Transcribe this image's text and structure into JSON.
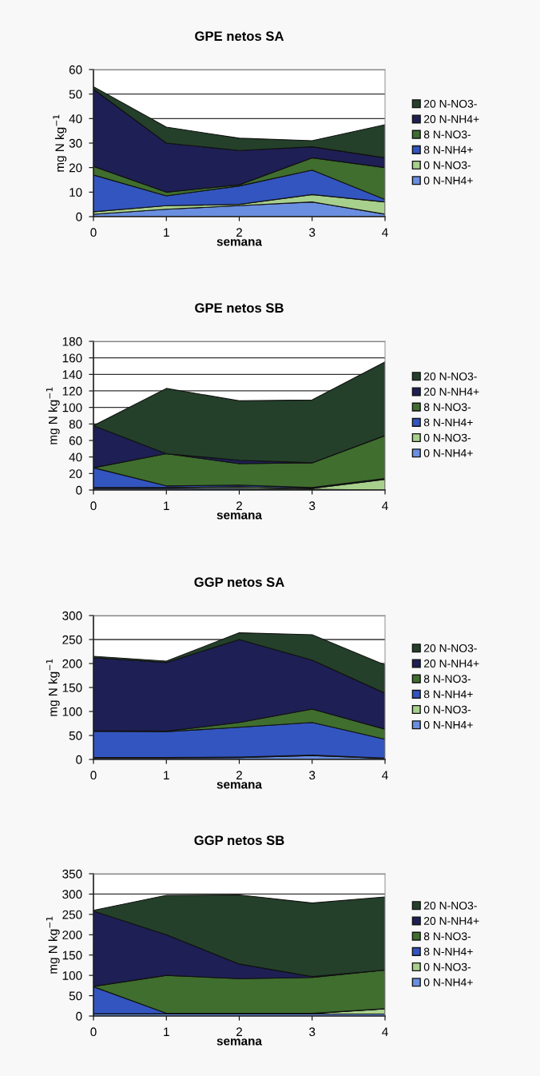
{
  "chart_data": [
    {
      "type": "area",
      "stacked": true,
      "title": "GPE netos SA",
      "xlabel": "semana",
      "ylabel": "mg N kg$^{−1}$",
      "x": [
        0,
        1,
        2,
        3,
        4
      ],
      "xlim": [
        0,
        4
      ],
      "xticks": [
        0,
        1,
        2,
        3,
        4
      ],
      "ylim": [
        0,
        60
      ],
      "yticks": [
        0,
        10,
        20,
        30,
        40,
        50,
        60
      ],
      "grid": "y",
      "legend": "right",
      "series": [
        {
          "name": "0 N-NH4+",
          "color": "#6a8fe0",
          "values": [
            1,
            3,
            4.5,
            6,
            1
          ]
        },
        {
          "name": "0 N-NO3-",
          "color": "#a8d08d",
          "values": [
            1,
            1.5,
            0.5,
            3,
            5
          ]
        },
        {
          "name": "8 N-NH4+",
          "color": "#3355c0",
          "values": [
            15,
            4,
            7.5,
            10,
            1
          ]
        },
        {
          "name": "8 N-NO3-",
          "color": "#3f6e2e",
          "values": [
            3.5,
            1.5,
            0.5,
            5,
            13
          ]
        },
        {
          "name": "20 N-NH4+",
          "color": "#1e1f55",
          "values": [
            31.5,
            20,
            14,
            4.5,
            4
          ]
        },
        {
          "name": "20 N-NO3-",
          "color": "#24402a",
          "values": [
            1,
            6.5,
            5,
            2.5,
            13.5
          ]
        }
      ]
    },
    {
      "type": "area",
      "stacked": true,
      "title": "GPE netos SB",
      "xlabel": "semana",
      "ylabel": "mg N kg$^{−1}$",
      "x": [
        0,
        1,
        2,
        3,
        4
      ],
      "xlim": [
        0,
        4
      ],
      "xticks": [
        0,
        1,
        2,
        3,
        4
      ],
      "ylim": [
        0,
        180
      ],
      "yticks": [
        0,
        20,
        40,
        60,
        80,
        100,
        120,
        140,
        160,
        180
      ],
      "grid": "y",
      "legend": "right",
      "series": [
        {
          "name": "0 N-NH4+",
          "color": "#6a8fe0",
          "values": [
            2,
            2,
            2,
            1,
            0
          ]
        },
        {
          "name": "0 N-NO3-",
          "color": "#a8d08d",
          "values": [
            1,
            1,
            2,
            1,
            13
          ]
        },
        {
          "name": "8 N-NH4+",
          "color": "#3355c0",
          "values": [
            24,
            2,
            2,
            1,
            1
          ]
        },
        {
          "name": "8 N-NO3-",
          "color": "#3f6e2e",
          "values": [
            0,
            39,
            26,
            30,
            52
          ]
        },
        {
          "name": "20 N-NH4+",
          "color": "#1e1f55",
          "values": [
            51,
            0,
            4,
            0,
            0
          ]
        },
        {
          "name": "20 N-NO3-",
          "color": "#24402a",
          "values": [
            0,
            79,
            72,
            76,
            89
          ]
        }
      ]
    },
    {
      "type": "area",
      "stacked": true,
      "title": "GGP netos SA",
      "xlabel": "semana",
      "ylabel": "mg N kg$^{−1}$",
      "x": [
        0,
        1,
        2,
        3,
        4
      ],
      "xlim": [
        0,
        4
      ],
      "xticks": [
        0,
        1,
        2,
        3,
        4
      ],
      "ylim": [
        0,
        300
      ],
      "yticks": [
        0,
        50,
        100,
        150,
        200,
        250,
        300
      ],
      "grid": "y",
      "legend": "right",
      "series": [
        {
          "name": "0 N-NH4+",
          "color": "#6a8fe0",
          "values": [
            3,
            3,
            4,
            8,
            2
          ]
        },
        {
          "name": "0 N-NO3-",
          "color": "#a8d08d",
          "values": [
            1,
            1,
            1,
            1,
            1
          ]
        },
        {
          "name": "8 N-NH4+",
          "color": "#3355c0",
          "values": [
            55,
            54,
            62,
            68,
            39
          ]
        },
        {
          "name": "8 N-NO3-",
          "color": "#3f6e2e",
          "values": [
            1,
            1,
            10,
            28,
            21
          ]
        },
        {
          "name": "20 N-NH4+",
          "color": "#1e1f55",
          "values": [
            152,
            143,
            173,
            102,
            75
          ]
        },
        {
          "name": "20 N-NO3-",
          "color": "#24402a",
          "values": [
            3,
            3,
            14,
            53,
            59
          ]
        }
      ]
    },
    {
      "type": "area",
      "stacked": true,
      "title": "GGP netos SB",
      "xlabel": "semana",
      "ylabel": "mg N kg$^{−1}$",
      "x": [
        0,
        1,
        2,
        3,
        4
      ],
      "xlim": [
        0,
        4
      ],
      "xticks": [
        0,
        1,
        2,
        3,
        4
      ],
      "ylim": [
        0,
        350
      ],
      "yticks": [
        0,
        50,
        100,
        150,
        200,
        250,
        300,
        350
      ],
      "grid": "y",
      "legend": "right",
      "series": [
        {
          "name": "0 N-NH4+",
          "color": "#6a8fe0",
          "values": [
            5,
            5,
            5,
            5,
            5
          ]
        },
        {
          "name": "0 N-NO3-",
          "color": "#a8d08d",
          "values": [
            1,
            1,
            1,
            1,
            13
          ]
        },
        {
          "name": "8 N-NH4+",
          "color": "#3355c0",
          "values": [
            66,
            1,
            1,
            1,
            0
          ]
        },
        {
          "name": "8 N-NO3-",
          "color": "#3f6e2e",
          "values": [
            1,
            93,
            85,
            88,
            95
          ]
        },
        {
          "name": "20 N-NH4+",
          "color": "#1e1f55",
          "values": [
            185,
            100,
            36,
            2,
            0
          ]
        },
        {
          "name": "20 N-NO3-",
          "color": "#24402a",
          "values": [
            2,
            97,
            170,
            181,
            180
          ]
        }
      ]
    }
  ]
}
